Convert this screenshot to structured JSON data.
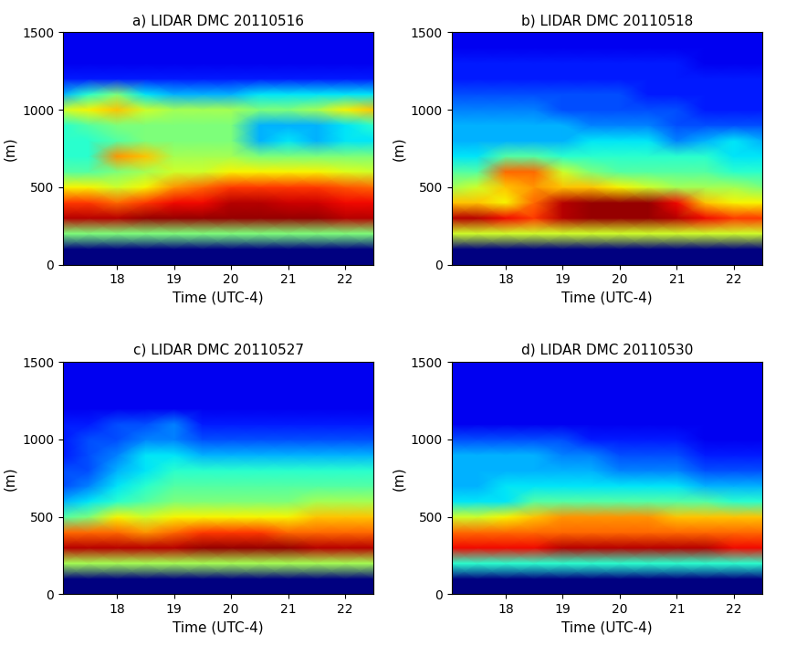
{
  "chart_data": [
    {
      "type": "heatmap",
      "title": "a) LIDAR DMC 20110516",
      "x_label": "Time (UTC-4)",
      "y_label": "(m)",
      "xlim": [
        17.05,
        22.5
      ],
      "ylim": [
        0,
        1500
      ],
      "xticks": [
        18,
        19,
        20,
        21,
        22
      ],
      "yticks": [
        0,
        500,
        1000,
        1500
      ],
      "color": "jet",
      "zlim": [
        0,
        10
      ],
      "x": [
        17.05,
        17.5,
        18,
        18.5,
        19,
        19.5,
        20,
        20.5,
        21,
        21.5,
        22,
        22.5
      ],
      "y": [
        0,
        100,
        200,
        300,
        400,
        500,
        600,
        700,
        800,
        900,
        1000,
        1100,
        1200,
        1300,
        1400,
        1500
      ],
      "cells": [
        [
          0,
          0,
          0,
          0,
          0,
          0,
          0,
          0,
          0,
          0,
          0,
          0
        ],
        [
          0,
          0,
          0,
          0,
          0,
          0,
          0,
          0,
          0,
          0,
          0,
          0
        ],
        [
          5,
          5,
          5,
          5,
          5,
          5,
          5,
          5,
          5,
          5,
          5,
          5
        ],
        [
          9.5,
          9.5,
          9.5,
          9.8,
          9.8,
          9.8,
          9.8,
          9.8,
          9.8,
          9.8,
          9.5,
          9.5
        ],
        [
          8.5,
          8.5,
          8,
          8.5,
          9,
          9,
          9.5,
          9.5,
          9.3,
          9.3,
          9,
          9
        ],
        [
          6.5,
          6.5,
          6,
          6.5,
          7.5,
          8,
          8.5,
          8.5,
          8.5,
          8.5,
          8.2,
          8
        ],
        [
          4.5,
          4.5,
          5,
          5.5,
          6,
          6,
          6.5,
          6.5,
          6.5,
          6.5,
          6.2,
          6
        ],
        [
          4,
          4,
          7.5,
          7,
          5.5,
          5.5,
          5.5,
          5,
          5,
          5,
          5,
          5
        ],
        [
          4,
          4,
          4.5,
          5,
          5,
          5,
          5,
          3,
          3.5,
          3,
          3.5,
          3.5
        ],
        [
          4,
          4.5,
          5,
          5,
          5,
          5,
          5,
          3,
          3,
          3,
          3.5,
          4
        ],
        [
          6,
          6.5,
          7,
          6,
          5.5,
          5.5,
          5.5,
          5,
          5,
          5.5,
          6.5,
          7
        ],
        [
          3,
          4,
          5,
          3.5,
          3,
          3,
          3,
          3.5,
          3.5,
          3.5,
          3.5,
          3.5
        ],
        [
          1.5,
          1.5,
          1.5,
          1.5,
          1.5,
          1.5,
          1.5,
          1.5,
          1.5,
          1.5,
          1.5,
          1.5
        ],
        [
          1,
          1,
          1,
          1,
          1,
          1,
          1,
          1,
          1,
          1,
          1,
          1
        ],
        [
          1,
          1,
          1,
          1,
          1,
          1,
          1,
          1,
          1,
          1,
          1,
          1
        ],
        [
          1,
          1,
          1,
          1,
          1,
          1,
          1,
          1,
          1,
          1,
          1,
          1
        ]
      ]
    },
    {
      "type": "heatmap",
      "title": "b) LIDAR DMC 20110518",
      "x_label": "Time (UTC-4)",
      "y_label": "(m)",
      "xlim": [
        17.05,
        22.5
      ],
      "ylim": [
        0,
        1500
      ],
      "xticks": [
        18,
        19,
        20,
        21,
        22
      ],
      "yticks": [
        0,
        500,
        1000,
        1500
      ],
      "color": "jet",
      "zlim": [
        0,
        10
      ],
      "x": [
        17.05,
        17.5,
        18,
        18.5,
        19,
        19.5,
        20,
        20.5,
        21,
        21.5,
        22,
        22.5
      ],
      "y": [
        0,
        100,
        200,
        300,
        400,
        500,
        600,
        700,
        800,
        900,
        1000,
        1100,
        1200,
        1300,
        1400,
        1500
      ],
      "cells": [
        [
          0,
          0,
          0,
          0,
          0,
          0,
          0,
          0,
          0,
          0,
          0,
          0
        ],
        [
          0,
          0,
          0,
          0,
          0,
          0,
          0,
          0,
          0,
          0,
          0,
          0
        ],
        [
          6,
          6,
          6,
          6,
          6,
          6,
          6,
          6,
          6,
          6,
          6,
          6
        ],
        [
          9.5,
          9.5,
          9,
          8.5,
          9.5,
          9.8,
          9.8,
          9.8,
          9.5,
          9,
          8.5,
          8.5
        ],
        [
          7,
          7,
          6.5,
          8,
          9.5,
          9.8,
          9.8,
          9.8,
          9,
          7,
          6.5,
          6.5
        ],
        [
          5.5,
          6,
          7,
          7.5,
          7,
          7,
          6.5,
          6,
          5.5,
          5.5,
          5.5,
          5
        ],
        [
          4.5,
          4.5,
          8,
          8,
          6,
          5,
          4.5,
          4.5,
          4.5,
          4.5,
          4,
          4
        ],
        [
          3.5,
          3.5,
          4.5,
          4.5,
          4,
          4,
          4,
          4,
          4,
          4,
          3.5,
          3.5
        ],
        [
          3,
          3,
          3,
          3,
          3,
          3.5,
          3.5,
          3.5,
          2.5,
          3,
          3.5,
          3
        ],
        [
          3,
          3,
          3,
          3,
          3,
          2.5,
          2.5,
          2.5,
          2,
          2,
          2,
          2
        ],
        [
          2.5,
          2.5,
          2.5,
          2.5,
          2,
          2,
          2,
          2,
          2,
          1.5,
          1.5,
          1.5
        ],
        [
          2,
          2,
          2,
          2,
          2,
          2,
          2,
          1.5,
          1.5,
          1.5,
          1.5,
          1.5
        ],
        [
          1.5,
          1.5,
          1.5,
          1.5,
          1.5,
          1.5,
          1.5,
          1.5,
          1.5,
          1.5,
          1.5,
          1.5
        ],
        [
          1.5,
          1.5,
          1.5,
          1.5,
          1.5,
          1.5,
          1.5,
          1.5,
          1.5,
          1,
          1,
          1
        ],
        [
          1,
          1,
          1,
          1,
          1,
          1,
          1,
          1,
          1,
          1,
          1,
          1
        ],
        [
          1,
          1,
          1,
          1,
          1,
          1,
          1,
          1,
          1,
          1,
          1,
          1
        ]
      ]
    },
    {
      "type": "heatmap",
      "title": "c) LIDAR DMC 20110527",
      "x_label": "Time (UTC-4)",
      "y_label": "(m)",
      "xlim": [
        17.05,
        22.5
      ],
      "ylim": [
        0,
        1500
      ],
      "xticks": [
        18,
        19,
        20,
        21,
        22
      ],
      "yticks": [
        0,
        500,
        1000,
        1500
      ],
      "color": "jet",
      "zlim": [
        0,
        10
      ],
      "x": [
        17.05,
        17.5,
        18,
        18.5,
        19,
        19.5,
        20,
        20.5,
        21,
        21.5,
        22,
        22.5
      ],
      "y": [
        0,
        100,
        200,
        300,
        400,
        500,
        600,
        700,
        800,
        900,
        1000,
        1100,
        1200,
        1300,
        1400,
        1500
      ],
      "cells": [
        [
          0,
          0,
          0,
          0,
          0,
          0,
          0,
          0,
          0,
          0,
          0,
          0
        ],
        [
          0,
          0,
          0,
          0,
          0,
          0,
          0,
          0,
          0,
          0,
          0,
          0
        ],
        [
          5.5,
          5.5,
          5.5,
          5.5,
          5.5,
          5.5,
          5.5,
          5.5,
          5.5,
          5.5,
          5.5,
          5.5
        ],
        [
          9.5,
          9.5,
          9.5,
          9.5,
          9.5,
          9.8,
          9.8,
          9.8,
          9.8,
          9.5,
          9.5,
          9.5
        ],
        [
          8,
          8,
          8,
          7.5,
          8,
          8.5,
          8.5,
          8.5,
          8,
          8,
          8,
          8
        ],
        [
          4.5,
          5,
          6.5,
          6,
          6.5,
          6.5,
          6.5,
          6.5,
          6.5,
          7,
          7,
          7
        ],
        [
          3,
          3.5,
          4,
          4.5,
          5,
          5,
          5,
          5,
          5,
          5.5,
          5.5,
          5.5
        ],
        [
          2,
          2.5,
          3.5,
          4,
          4.5,
          4.5,
          4.5,
          4.5,
          4.5,
          4.5,
          4.5,
          4.5
        ],
        [
          2,
          2,
          3,
          3.5,
          4,
          4,
          4,
          4,
          4,
          4,
          4,
          4
        ],
        [
          1.5,
          2,
          2.5,
          3.5,
          3.5,
          3,
          3,
          3,
          3,
          3,
          3,
          3
        ],
        [
          1.5,
          2,
          2,
          2.5,
          2.5,
          2,
          2,
          2,
          2,
          2,
          2,
          2
        ],
        [
          1.5,
          1.5,
          2,
          2,
          2.5,
          1.5,
          1.5,
          1.5,
          1.5,
          1.5,
          1.5,
          1.5
        ],
        [
          1,
          1,
          1,
          1,
          1,
          1,
          1,
          1,
          1,
          1,
          1,
          1
        ],
        [
          1,
          1,
          1,
          1,
          1,
          1,
          1,
          1,
          1,
          1,
          1,
          1
        ],
        [
          1,
          1,
          1,
          1,
          1,
          1,
          1,
          1,
          1,
          1,
          1,
          1
        ],
        [
          1,
          1,
          1,
          1,
          1,
          1,
          1,
          1,
          1,
          1,
          1,
          1
        ]
      ]
    },
    {
      "type": "heatmap",
      "title": "d) LIDAR DMC 20110530",
      "x_label": "Time (UTC-4)",
      "y_label": "(m)",
      "xlim": [
        17.05,
        22.5
      ],
      "ylim": [
        0,
        1500
      ],
      "xticks": [
        18,
        19,
        20,
        21,
        22
      ],
      "yticks": [
        0,
        500,
        1000,
        1500
      ],
      "color": "jet",
      "zlim": [
        0,
        10
      ],
      "x": [
        17.05,
        17.5,
        18,
        18.5,
        19,
        19.5,
        20,
        20.5,
        21,
        21.5,
        22,
        22.5
      ],
      "y": [
        0,
        100,
        200,
        300,
        400,
        500,
        600,
        700,
        800,
        900,
        1000,
        1100,
        1200,
        1300,
        1400,
        1500
      ],
      "cells": [
        [
          0,
          0,
          0,
          0,
          0,
          0,
          0,
          0,
          0,
          0,
          0,
          0
        ],
        [
          0,
          0,
          0,
          0,
          0,
          0,
          0,
          0,
          0,
          0,
          0,
          0
        ],
        [
          4,
          4,
          4,
          4,
          4,
          4,
          4,
          4,
          4,
          4,
          4,
          4
        ],
        [
          9,
          9,
          9,
          9,
          9.5,
          9.5,
          9.5,
          9.5,
          9.5,
          9.5,
          9,
          9
        ],
        [
          8,
          8,
          8,
          8,
          8,
          8,
          8,
          8,
          8,
          8,
          8,
          8
        ],
        [
          6,
          6,
          6.5,
          7,
          7.5,
          7.5,
          7.5,
          7.5,
          7,
          7,
          7,
          7
        ],
        [
          3.5,
          3.5,
          3.5,
          4.5,
          4.5,
          4.5,
          4.5,
          4.5,
          4.5,
          4.5,
          4,
          4
        ],
        [
          3,
          3,
          3.5,
          3.5,
          3.5,
          3.5,
          3.5,
          3.5,
          3.5,
          3,
          3,
          3
        ],
        [
          3,
          3,
          3,
          3,
          3,
          3,
          2.5,
          2.5,
          2.5,
          2,
          2,
          2
        ],
        [
          3,
          3,
          3,
          3,
          2.5,
          2.5,
          2,
          2,
          2,
          1.5,
          1.5,
          1.5
        ],
        [
          2,
          2,
          2,
          2,
          2,
          1.5,
          1.5,
          1.5,
          1.5,
          1,
          1,
          1
        ],
        [
          1,
          1,
          1,
          1,
          1,
          1,
          1,
          1,
          1,
          1,
          1,
          1
        ],
        [
          1,
          1,
          1,
          1,
          1,
          1,
          1,
          1,
          1,
          1,
          1,
          1
        ],
        [
          1,
          1,
          1,
          1,
          1,
          1,
          1,
          1,
          1,
          1,
          1,
          1
        ],
        [
          1,
          1,
          1,
          1,
          1,
          1,
          1,
          1,
          1,
          1,
          1,
          1
        ],
        [
          1,
          1,
          1,
          1,
          1,
          1,
          1,
          1,
          1,
          1,
          1,
          1
        ]
      ]
    }
  ]
}
